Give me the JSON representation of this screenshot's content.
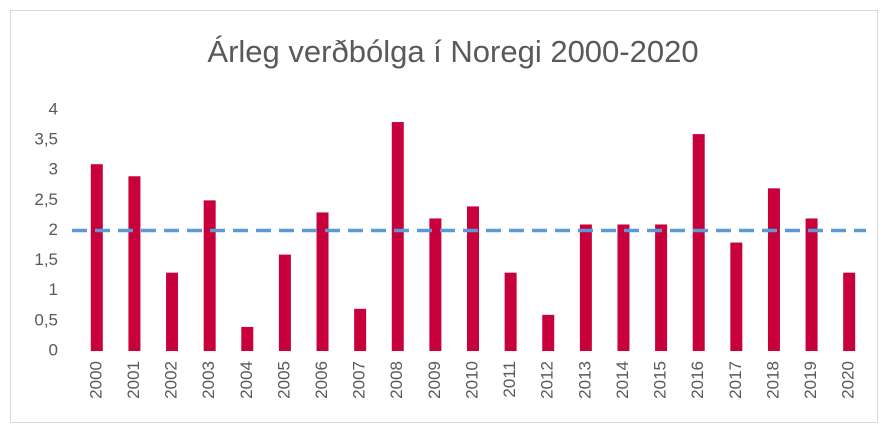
{
  "chart_data": {
    "type": "bar",
    "title": "Árleg verðbólga í Noregi 2000-2020",
    "categories": [
      "2000",
      "2001",
      "2002",
      "2003",
      "2004",
      "2005",
      "2006",
      "2007",
      "2008",
      "2009",
      "2010",
      "2011",
      "2012",
      "2013",
      "2014",
      "2015",
      "2016",
      "2017",
      "2018",
      "2019",
      "2020"
    ],
    "values": [
      3.1,
      2.9,
      1.3,
      2.5,
      0.4,
      1.6,
      2.3,
      0.7,
      3.8,
      2.2,
      2.4,
      1.3,
      0.6,
      2.1,
      2.1,
      2.1,
      3.6,
      1.8,
      2.7,
      2.2,
      1.3
    ],
    "color": "#c8003c",
    "ylim": [
      0,
      4
    ],
    "yticks": [
      0,
      {
        "value": 0.5,
        "label": "0,5"
      },
      1,
      {
        "value": 1.5,
        "label": "1,5"
      },
      2,
      {
        "value": 2.5,
        "label": "2,5"
      },
      3,
      {
        "value": 3.5,
        "label": "3,5"
      },
      4
    ],
    "reference_line": {
      "value": 2,
      "color": "#5b9bd5",
      "dashed": true
    },
    "grid": false
  }
}
